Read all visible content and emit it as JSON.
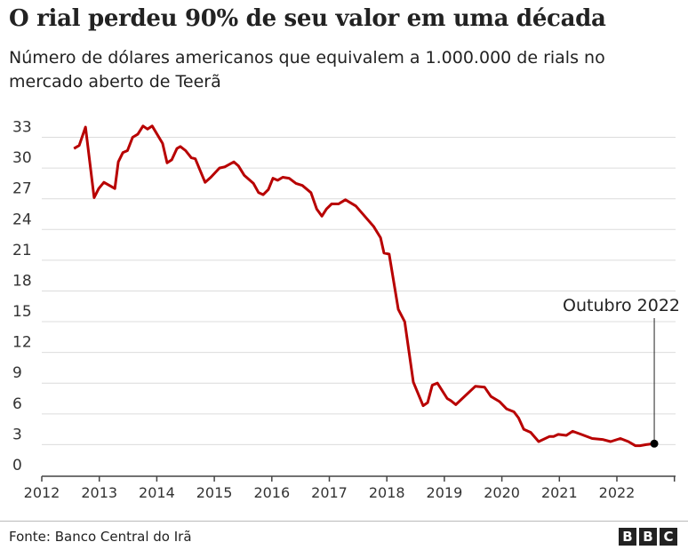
{
  "header": {
    "title": "O rial perdeu 90% de seu valor em uma década",
    "subtitle": "Número de dólares americanos que equivalem a 1.000.000 de rials no mercado aberto de Teerã"
  },
  "footer": {
    "source": "Fonte: Banco Central do Irã",
    "logo": "BBC"
  },
  "chart_data": {
    "type": "line",
    "title": "O rial perdeu 90% de seu valor em uma década",
    "subtitle": "Número de dólares americanos que equivalem a 1.000.000 de rials no mercado aberto de Teerã",
    "xlabel": "",
    "ylabel": "",
    "xlim": [
      2012,
      2023
    ],
    "ylim": [
      0,
      33
    ],
    "x_ticks": [
      "2012",
      "2013",
      "2014",
      "2015",
      "2016",
      "2017",
      "2018",
      "2019",
      "2020",
      "2021",
      "2022"
    ],
    "y_ticks": [
      0,
      3,
      6,
      9,
      12,
      15,
      18,
      21,
      24,
      27,
      30,
      33
    ],
    "grid": true,
    "line_color": "#b80000",
    "annotation": {
      "label": "Outubro 2022",
      "x": 2022.65,
      "y": 3.1
    },
    "series": [
      {
        "x": [
          2012.56,
          2012.65,
          2012.76,
          2012.91,
          2012.99,
          2013.08,
          2013.27,
          2013.33,
          2013.41,
          2013.49,
          2013.58,
          2013.67,
          2013.76,
          2013.84,
          2013.92,
          2014.1,
          2014.18,
          2014.26,
          2014.35,
          2014.41,
          2014.5,
          2014.6,
          2014.67,
          2014.84,
          2014.94,
          2015.09,
          2015.18,
          2015.34,
          2015.42,
          2015.52,
          2015.68,
          2015.77,
          2015.85,
          2015.94,
          2016.02,
          2016.1,
          2016.19,
          2016.3,
          2016.42,
          2016.53,
          2016.68,
          2016.78,
          2016.87,
          2016.95,
          2017.04,
          2017.16,
          2017.28,
          2017.46,
          2017.77,
          2017.89,
          2017.95,
          2018.04,
          2018.2,
          2018.31,
          2018.46,
          2018.63,
          2018.71,
          2018.79,
          2018.88,
          2019.05,
          2019.11,
          2019.2,
          2019.54,
          2019.7,
          2019.81,
          2019.96,
          2020.08,
          2020.21,
          2020.29,
          2020.38,
          2020.5,
          2020.64,
          2020.83,
          2020.9,
          2020.98,
          2021.12,
          2021.23,
          2021.38,
          2021.57,
          2021.75,
          2021.89,
          2022.06,
          2022.2,
          2022.32,
          2022.4,
          2022.51,
          2022.65
        ],
        "y": [
          31.9,
          32.2,
          34.0,
          27.1,
          28.0,
          28.6,
          28.0,
          30.6,
          31.5,
          31.7,
          33.0,
          33.3,
          34.1,
          33.8,
          34.1,
          32.4,
          30.5,
          30.8,
          31.9,
          32.1,
          31.7,
          31.0,
          30.9,
          28.6,
          29.1,
          30.0,
          30.1,
          30.6,
          30.2,
          29.3,
          28.5,
          27.6,
          27.4,
          27.9,
          29.0,
          28.8,
          29.1,
          29.0,
          28.5,
          28.3,
          27.6,
          26.0,
          25.3,
          26.0,
          26.5,
          26.5,
          26.9,
          26.3,
          24.3,
          23.2,
          21.7,
          21.6,
          16.2,
          15.0,
          9.1,
          6.8,
          7.1,
          8.8,
          9.0,
          7.5,
          7.3,
          6.9,
          8.7,
          8.6,
          7.7,
          7.2,
          6.5,
          6.2,
          5.6,
          4.5,
          4.2,
          3.3,
          3.8,
          3.8,
          4.0,
          3.9,
          4.3,
          4.0,
          3.6,
          3.5,
          3.3,
          3.6,
          3.3,
          2.9,
          2.9,
          3.0,
          3.1
        ]
      }
    ]
  }
}
